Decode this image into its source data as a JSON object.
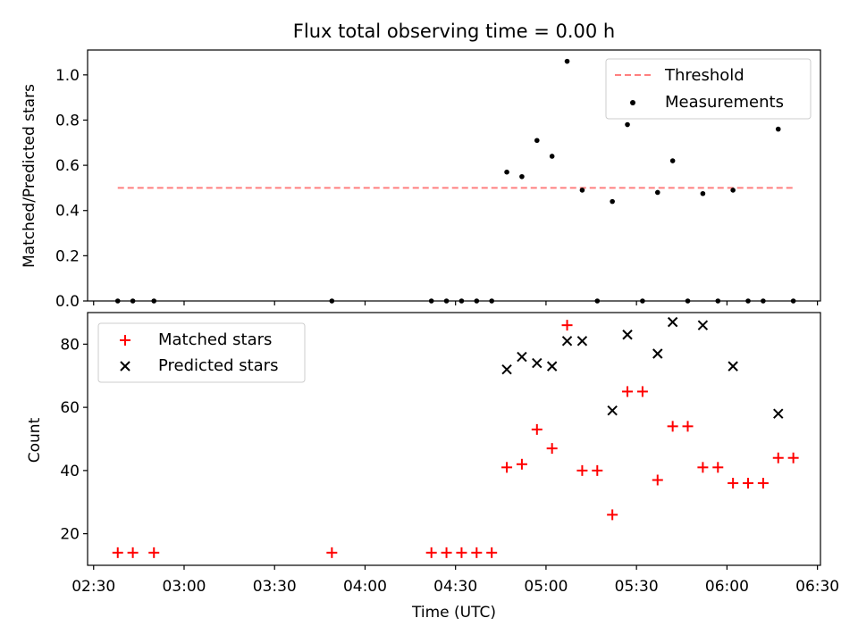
{
  "chart_data": [
    {
      "type": "scatter",
      "title": "Flux total observing time = 0.00 h",
      "xlabel": "",
      "ylabel": "Matched/Predicted stars",
      "ylim": [
        0,
        1.11
      ],
      "yticks": [
        "0.0",
        "0.2",
        "0.4",
        "0.6",
        "0.8",
        "1.0"
      ],
      "grid": false,
      "legend_position": "top-right",
      "threshold": {
        "name": "Threshold",
        "value": 0.5,
        "x_start": "02:38",
        "x_end": "06:22",
        "color": "#ff7f7f",
        "style": "dashed"
      },
      "series": [
        {
          "name": "Measurements",
          "marker": "dot",
          "color": "#000000",
          "points": [
            [
              "02:38",
              0.0
            ],
            [
              "02:43",
              0.0
            ],
            [
              "02:50",
              0.0
            ],
            [
              "03:49",
              0.0
            ],
            [
              "04:22",
              0.0
            ],
            [
              "04:27",
              0.0
            ],
            [
              "04:32",
              0.0
            ],
            [
              "04:37",
              0.0
            ],
            [
              "04:42",
              0.0
            ],
            [
              "04:47",
              0.57
            ],
            [
              "04:52",
              0.55
            ],
            [
              "04:57",
              0.71
            ],
            [
              "05:02",
              0.64
            ],
            [
              "05:07",
              1.06
            ],
            [
              "05:12",
              0.49
            ],
            [
              "05:17",
              0.0
            ],
            [
              "05:22",
              0.44
            ],
            [
              "05:27",
              0.78
            ],
            [
              "05:32",
              0.0
            ],
            [
              "05:37",
              0.48
            ],
            [
              "05:42",
              0.62
            ],
            [
              "05:47",
              0.0
            ],
            [
              "05:52",
              0.475
            ],
            [
              "05:57",
              0.0
            ],
            [
              "06:02",
              0.49
            ],
            [
              "06:07",
              0.0
            ],
            [
              "06:12",
              0.0
            ],
            [
              "06:17",
              0.76
            ],
            [
              "06:22",
              0.0
            ]
          ]
        }
      ]
    },
    {
      "type": "scatter",
      "title": "",
      "xlabel": "Time (UTC)",
      "ylabel": "Count",
      "ylim": [
        10,
        90
      ],
      "yticks": [
        "20",
        "40",
        "60",
        "80"
      ],
      "xlim": [
        "02:28",
        "06:31"
      ],
      "xticks": [
        "02:30",
        "03:00",
        "03:30",
        "04:00",
        "04:30",
        "05:00",
        "05:30",
        "06:00",
        "06:30"
      ],
      "grid": false,
      "legend_position": "top-left",
      "series": [
        {
          "name": "Matched stars",
          "marker": "plus",
          "color": "#ff0000",
          "points": [
            [
              "02:38",
              14
            ],
            [
              "02:43",
              14
            ],
            [
              "02:50",
              14
            ],
            [
              "03:49",
              14
            ],
            [
              "04:22",
              14
            ],
            [
              "04:27",
              14
            ],
            [
              "04:32",
              14
            ],
            [
              "04:37",
              14
            ],
            [
              "04:42",
              14
            ],
            [
              "04:47",
              41
            ],
            [
              "04:52",
              42
            ],
            [
              "04:57",
              53
            ],
            [
              "05:02",
              47
            ],
            [
              "05:07",
              86
            ],
            [
              "05:12",
              40
            ],
            [
              "05:17",
              40
            ],
            [
              "05:22",
              26
            ],
            [
              "05:27",
              65
            ],
            [
              "05:32",
              65
            ],
            [
              "05:37",
              37
            ],
            [
              "05:42",
              54
            ],
            [
              "05:47",
              54
            ],
            [
              "05:52",
              41
            ],
            [
              "05:57",
              41
            ],
            [
              "06:02",
              36
            ],
            [
              "06:07",
              36
            ],
            [
              "06:12",
              36
            ],
            [
              "06:17",
              44
            ],
            [
              "06:22",
              44
            ]
          ]
        },
        {
          "name": "Predicted stars",
          "marker": "x",
          "color": "#000000",
          "points": [
            [
              "04:47",
              72
            ],
            [
              "04:52",
              76
            ],
            [
              "04:57",
              74
            ],
            [
              "05:02",
              73
            ],
            [
              "05:07",
              81
            ],
            [
              "05:12",
              81
            ],
            [
              "05:22",
              59
            ],
            [
              "05:27",
              83
            ],
            [
              "05:37",
              77
            ],
            [
              "05:42",
              87
            ],
            [
              "05:52",
              86
            ],
            [
              "06:02",
              73
            ],
            [
              "06:17",
              58
            ]
          ]
        }
      ]
    }
  ]
}
